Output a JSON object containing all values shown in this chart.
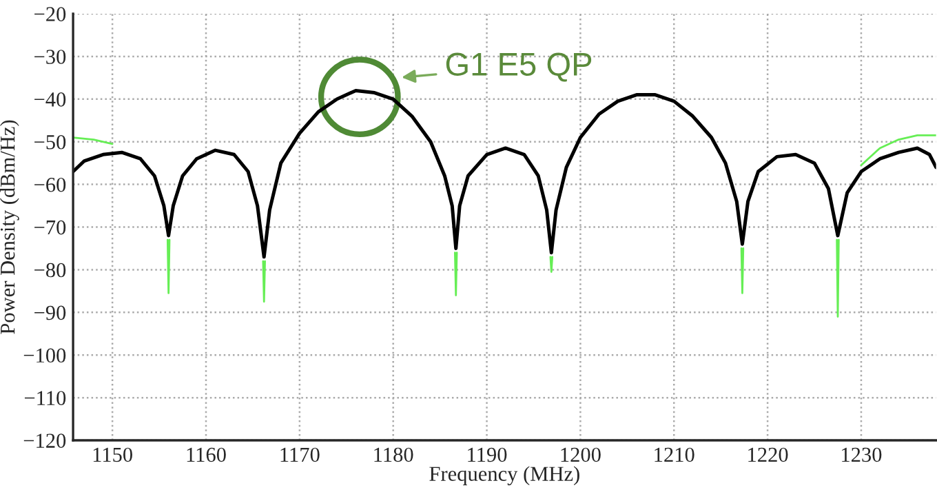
{
  "chart_data": {
    "type": "line",
    "xlabel": "Frequency (MHz)",
    "ylabel": "Power Density (dBm/Hz)",
    "xlim": [
      1145.8,
      1238
    ],
    "xticks": [
      1150,
      1160,
      1170,
      1180,
      1190,
      1200,
      1210,
      1220,
      1230
    ],
    "ylim": [
      -120,
      -20
    ],
    "yticks": [
      -120,
      -110,
      -100,
      -90,
      -80,
      -70,
      -60,
      -50,
      -40,
      -30,
      -20
    ],
    "grid": true,
    "marker": "none",
    "line_style": "solid",
    "annotations": [
      {
        "text": "G1 E5 QP",
        "x": 1176.4,
        "y": -39.5
      }
    ],
    "series": [
      {
        "color": "#66ee55",
        "x": [
          1145.8,
          1148,
          1150,
          1150.5,
          1155.9,
          1156.0,
          1156.1,
          1156.3,
          1166.1,
          1166.2,
          1166.3,
          1166.5,
          1186.6,
          1186.7,
          1186.8,
          1187.0,
          1196.8,
          1196.9,
          1197.0,
          1197.2,
          1217.2,
          1217.3,
          1217.4,
          1217.6,
          1227.4,
          1227.5,
          1227.6,
          1229,
          1230,
          1232,
          1234,
          1236,
          1238
        ],
        "values": [
          -49,
          -49.5,
          -50.5,
          null,
          -73,
          -85.5,
          -73,
          null,
          -78,
          -87.5,
          -78,
          null,
          -76,
          -86,
          -76,
          null,
          -77,
          -80.5,
          -77,
          null,
          -75,
          -85.5,
          -75,
          null,
          -73,
          -91,
          -73,
          null,
          -55.5,
          -51.5,
          -49.5,
          -48.5,
          -48.5
        ]
      },
      {
        "color": "#000000",
        "x": [
          1145.8,
          1147,
          1149,
          1151,
          1153,
          1154.5,
          1155.5,
          1156.0,
          1156.5,
          1157.5,
          1159,
          1161,
          1163,
          1164.5,
          1165.5,
          1166.2,
          1166.8,
          1168,
          1170,
          1172,
          1174,
          1176,
          1178,
          1180,
          1182,
          1184,
          1185.5,
          1186.3,
          1186.7,
          1187.1,
          1188,
          1190,
          1192,
          1194,
          1195.5,
          1196.4,
          1196.9,
          1197.4,
          1198.5,
          1200,
          1202,
          1204,
          1206,
          1208,
          1210,
          1212,
          1214,
          1215.5,
          1216.7,
          1217.3,
          1217.9,
          1219,
          1221,
          1223,
          1225,
          1226.5,
          1227.5,
          1228.5,
          1230,
          1232,
          1234,
          1236,
          1237.3,
          1238
        ],
        "values": [
          -57,
          -54.5,
          -53,
          -52.5,
          -54,
          -58,
          -65,
          -72,
          -65,
          -58,
          -54,
          -52,
          -53,
          -57,
          -65,
          -77,
          -66,
          -55,
          -48,
          -43,
          -40,
          -38,
          -38.5,
          -40,
          -44,
          -50,
          -58,
          -65,
          -75,
          -65,
          -58,
          -53,
          -51.5,
          -53,
          -58,
          -66,
          -76,
          -66,
          -56,
          -49,
          -43.5,
          -40.5,
          -39,
          -39,
          -40.5,
          -44,
          -49,
          -55,
          -64,
          -74,
          -64,
          -57,
          -53.5,
          -53,
          -55,
          -61,
          -72,
          -62,
          -57,
          -54,
          -52.5,
          -51.5,
          -53,
          -56
        ]
      }
    ]
  }
}
